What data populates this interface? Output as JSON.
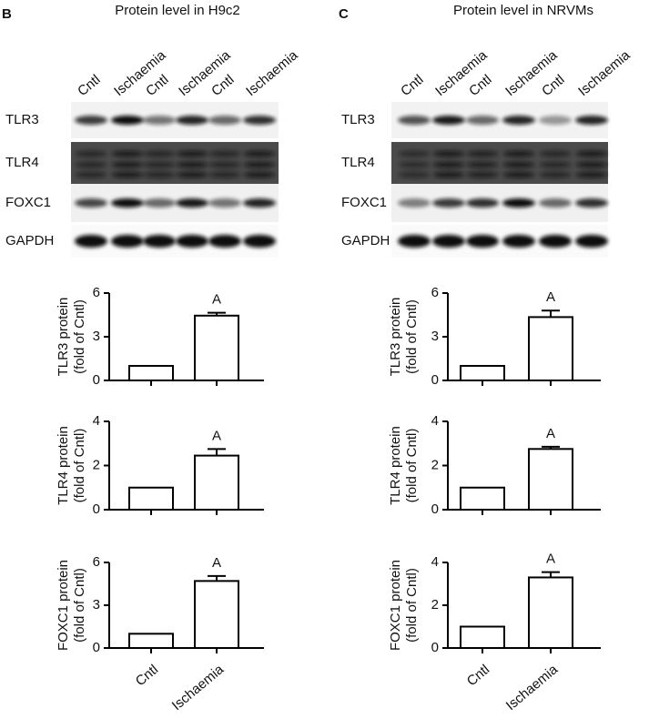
{
  "panels": [
    {
      "label": "B",
      "title": "Protein level in H9c2",
      "lanes": [
        "Cntl",
        "Ischaemia",
        "Cntl",
        "Ischaemia",
        "Cntl",
        "Ischaemia"
      ],
      "blots": [
        "TLR3",
        "TLR4",
        "FOXC1",
        "GAPDH"
      ]
    },
    {
      "label": "C",
      "title": "Protein level in NRVMs",
      "lanes": [
        "Cntl",
        "Ischaemia",
        "Cntl",
        "Ischaemia",
        "Cntl",
        "Ischaemia"
      ],
      "blots": [
        "TLR3",
        "TLR4",
        "FOXC1",
        "GAPDH"
      ]
    }
  ],
  "chart_data": [
    {
      "type": "bar",
      "ylabel": [
        "TLR3 protein",
        "(fold of Cntl)"
      ],
      "categories": [
        null,
        null
      ],
      "values": [
        1,
        4.45
      ],
      "errors": [
        null,
        0.2
      ],
      "annotation": "A",
      "ylim": [
        0,
        6
      ],
      "yticks": [
        0,
        3,
        6
      ]
    },
    {
      "type": "bar",
      "ylabel": [
        "TLR4 protein",
        "(fold of Cntl)"
      ],
      "categories": [
        null,
        null
      ],
      "values": [
        1,
        2.45
      ],
      "errors": [
        null,
        0.3
      ],
      "annotation": "A",
      "ylim": [
        0,
        4
      ],
      "yticks": [
        0,
        2,
        4
      ]
    },
    {
      "type": "bar",
      "ylabel": [
        "FOXC1 protein",
        "(fold of Cntl)"
      ],
      "categories": [
        "Cntl",
        "Ischaemia"
      ],
      "values": [
        1,
        4.7
      ],
      "errors": [
        null,
        0.35
      ],
      "annotation": "A",
      "ylim": [
        0,
        6
      ],
      "yticks": [
        0,
        3,
        6
      ]
    },
    {
      "type": "bar",
      "ylabel": [
        "TLR3 protein",
        "(fold of Cntl)"
      ],
      "categories": [
        null,
        null
      ],
      "values": [
        1,
        4.35
      ],
      "errors": [
        null,
        0.45
      ],
      "annotation": "A",
      "ylim": [
        0,
        6
      ],
      "yticks": [
        0,
        3,
        6
      ]
    },
    {
      "type": "bar",
      "ylabel": [
        "TLR4 protein",
        "(fold of Cntl)"
      ],
      "categories": [
        null,
        null
      ],
      "values": [
        1,
        2.75
      ],
      "errors": [
        null,
        0.1
      ],
      "annotation": "A",
      "ylim": [
        0,
        4
      ],
      "yticks": [
        0,
        2,
        4
      ]
    },
    {
      "type": "bar",
      "ylabel": [
        "FOXC1 protein",
        "(fold of Cntl)"
      ],
      "categories": [
        "Cntl",
        "Ischaemia"
      ],
      "values": [
        1,
        3.3
      ],
      "errors": [
        null,
        0.25
      ],
      "annotation": "A",
      "ylim": [
        0,
        4
      ],
      "yticks": [
        0,
        2,
        4
      ]
    }
  ]
}
